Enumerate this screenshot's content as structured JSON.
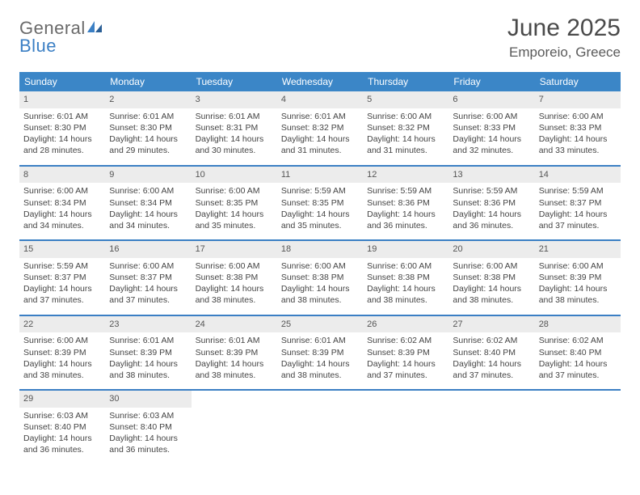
{
  "brand": {
    "name_a": "General",
    "name_b": "Blue"
  },
  "title": "June 2025",
  "location": "Emporeio, Greece",
  "colors": {
    "header_bar": "#3b86c7",
    "week_rule": "#3b7fc4",
    "daynum_bg": "#ececec",
    "text": "#444444",
    "title_text": "#4a4a4a"
  },
  "dow": [
    "Sunday",
    "Monday",
    "Tuesday",
    "Wednesday",
    "Thursday",
    "Friday",
    "Saturday"
  ],
  "weeks": [
    [
      {
        "n": "1",
        "sr": "Sunrise: 6:01 AM",
        "ss": "Sunset: 8:30 PM",
        "dl1": "Daylight: 14 hours",
        "dl2": "and 28 minutes."
      },
      {
        "n": "2",
        "sr": "Sunrise: 6:01 AM",
        "ss": "Sunset: 8:30 PM",
        "dl1": "Daylight: 14 hours",
        "dl2": "and 29 minutes."
      },
      {
        "n": "3",
        "sr": "Sunrise: 6:01 AM",
        "ss": "Sunset: 8:31 PM",
        "dl1": "Daylight: 14 hours",
        "dl2": "and 30 minutes."
      },
      {
        "n": "4",
        "sr": "Sunrise: 6:01 AM",
        "ss": "Sunset: 8:32 PM",
        "dl1": "Daylight: 14 hours",
        "dl2": "and 31 minutes."
      },
      {
        "n": "5",
        "sr": "Sunrise: 6:00 AM",
        "ss": "Sunset: 8:32 PM",
        "dl1": "Daylight: 14 hours",
        "dl2": "and 31 minutes."
      },
      {
        "n": "6",
        "sr": "Sunrise: 6:00 AM",
        "ss": "Sunset: 8:33 PM",
        "dl1": "Daylight: 14 hours",
        "dl2": "and 32 minutes."
      },
      {
        "n": "7",
        "sr": "Sunrise: 6:00 AM",
        "ss": "Sunset: 8:33 PM",
        "dl1": "Daylight: 14 hours",
        "dl2": "and 33 minutes."
      }
    ],
    [
      {
        "n": "8",
        "sr": "Sunrise: 6:00 AM",
        "ss": "Sunset: 8:34 PM",
        "dl1": "Daylight: 14 hours",
        "dl2": "and 34 minutes."
      },
      {
        "n": "9",
        "sr": "Sunrise: 6:00 AM",
        "ss": "Sunset: 8:34 PM",
        "dl1": "Daylight: 14 hours",
        "dl2": "and 34 minutes."
      },
      {
        "n": "10",
        "sr": "Sunrise: 6:00 AM",
        "ss": "Sunset: 8:35 PM",
        "dl1": "Daylight: 14 hours",
        "dl2": "and 35 minutes."
      },
      {
        "n": "11",
        "sr": "Sunrise: 5:59 AM",
        "ss": "Sunset: 8:35 PM",
        "dl1": "Daylight: 14 hours",
        "dl2": "and 35 minutes."
      },
      {
        "n": "12",
        "sr": "Sunrise: 5:59 AM",
        "ss": "Sunset: 8:36 PM",
        "dl1": "Daylight: 14 hours",
        "dl2": "and 36 minutes."
      },
      {
        "n": "13",
        "sr": "Sunrise: 5:59 AM",
        "ss": "Sunset: 8:36 PM",
        "dl1": "Daylight: 14 hours",
        "dl2": "and 36 minutes."
      },
      {
        "n": "14",
        "sr": "Sunrise: 5:59 AM",
        "ss": "Sunset: 8:37 PM",
        "dl1": "Daylight: 14 hours",
        "dl2": "and 37 minutes."
      }
    ],
    [
      {
        "n": "15",
        "sr": "Sunrise: 5:59 AM",
        "ss": "Sunset: 8:37 PM",
        "dl1": "Daylight: 14 hours",
        "dl2": "and 37 minutes."
      },
      {
        "n": "16",
        "sr": "Sunrise: 6:00 AM",
        "ss": "Sunset: 8:37 PM",
        "dl1": "Daylight: 14 hours",
        "dl2": "and 37 minutes."
      },
      {
        "n": "17",
        "sr": "Sunrise: 6:00 AM",
        "ss": "Sunset: 8:38 PM",
        "dl1": "Daylight: 14 hours",
        "dl2": "and 38 minutes."
      },
      {
        "n": "18",
        "sr": "Sunrise: 6:00 AM",
        "ss": "Sunset: 8:38 PM",
        "dl1": "Daylight: 14 hours",
        "dl2": "and 38 minutes."
      },
      {
        "n": "19",
        "sr": "Sunrise: 6:00 AM",
        "ss": "Sunset: 8:38 PM",
        "dl1": "Daylight: 14 hours",
        "dl2": "and 38 minutes."
      },
      {
        "n": "20",
        "sr": "Sunrise: 6:00 AM",
        "ss": "Sunset: 8:38 PM",
        "dl1": "Daylight: 14 hours",
        "dl2": "and 38 minutes."
      },
      {
        "n": "21",
        "sr": "Sunrise: 6:00 AM",
        "ss": "Sunset: 8:39 PM",
        "dl1": "Daylight: 14 hours",
        "dl2": "and 38 minutes."
      }
    ],
    [
      {
        "n": "22",
        "sr": "Sunrise: 6:00 AM",
        "ss": "Sunset: 8:39 PM",
        "dl1": "Daylight: 14 hours",
        "dl2": "and 38 minutes."
      },
      {
        "n": "23",
        "sr": "Sunrise: 6:01 AM",
        "ss": "Sunset: 8:39 PM",
        "dl1": "Daylight: 14 hours",
        "dl2": "and 38 minutes."
      },
      {
        "n": "24",
        "sr": "Sunrise: 6:01 AM",
        "ss": "Sunset: 8:39 PM",
        "dl1": "Daylight: 14 hours",
        "dl2": "and 38 minutes."
      },
      {
        "n": "25",
        "sr": "Sunrise: 6:01 AM",
        "ss": "Sunset: 8:39 PM",
        "dl1": "Daylight: 14 hours",
        "dl2": "and 38 minutes."
      },
      {
        "n": "26",
        "sr": "Sunrise: 6:02 AM",
        "ss": "Sunset: 8:39 PM",
        "dl1": "Daylight: 14 hours",
        "dl2": "and 37 minutes."
      },
      {
        "n": "27",
        "sr": "Sunrise: 6:02 AM",
        "ss": "Sunset: 8:40 PM",
        "dl1": "Daylight: 14 hours",
        "dl2": "and 37 minutes."
      },
      {
        "n": "28",
        "sr": "Sunrise: 6:02 AM",
        "ss": "Sunset: 8:40 PM",
        "dl1": "Daylight: 14 hours",
        "dl2": "and 37 minutes."
      }
    ],
    [
      {
        "n": "29",
        "sr": "Sunrise: 6:03 AM",
        "ss": "Sunset: 8:40 PM",
        "dl1": "Daylight: 14 hours",
        "dl2": "and 36 minutes."
      },
      {
        "n": "30",
        "sr": "Sunrise: 6:03 AM",
        "ss": "Sunset: 8:40 PM",
        "dl1": "Daylight: 14 hours",
        "dl2": "and 36 minutes."
      },
      null,
      null,
      null,
      null,
      null
    ]
  ]
}
